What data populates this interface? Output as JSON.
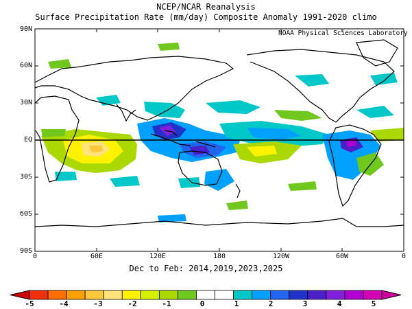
{
  "header": {
    "line1": "NCEP/NCAR Reanalysis",
    "line2": "Surface Precipitation Rate (mm/day) Composite Anomaly 1991-2020 climo"
  },
  "map": {
    "credit": "NOAA Physical Sciences Laboratory",
    "period_label": "Dec to Feb: 2014,2019,2023,2025",
    "lat_labels": [
      "90N",
      "60N",
      "30N",
      "EQ",
      "30S",
      "60S",
      "90S"
    ],
    "lon_labels": [
      "0",
      "60E",
      "120E",
      "180",
      "120W",
      "60W",
      "0"
    ],
    "equator_line": true
  },
  "colorbar": {
    "labels": [
      "-5",
      "-4",
      "-3",
      "-2",
      "-1",
      "0",
      "1",
      "2",
      "3",
      "4",
      "5"
    ],
    "colors": [
      "#d10000",
      "#f0300a",
      "#ff6c00",
      "#ffa000",
      "#ffc83c",
      "#ffe27a",
      "#fff200",
      "#d6ee00",
      "#aad800",
      "#70c81e",
      "#ffffff",
      "#ffffff",
      "#00c8c8",
      "#00a0ff",
      "#2064f0",
      "#2032c8",
      "#4a1ec8",
      "#8020dc",
      "#b000d0",
      "#d400b4",
      "#d000a0"
    ]
  },
  "colors": {
    "equator": "#000000",
    "coast": "#000000"
  }
}
